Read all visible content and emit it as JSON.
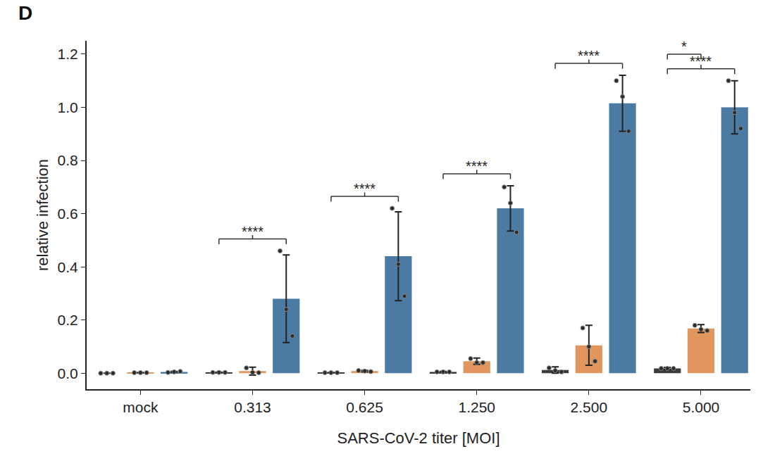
{
  "chart_data": {
    "type": "bar",
    "panel_label": "D",
    "x_label": "SARS-CoV-2 titer [MOI]",
    "y_label": "relative infection",
    "categories": [
      "mock",
      "0.313",
      "0.625",
      "1.250",
      "2.500",
      "5.000"
    ],
    "series": [
      {
        "color": "#3b3b3b",
        "values": [
          0.0,
          0.003,
          0.002,
          0.005,
          0.012,
          0.018
        ],
        "errors": [
          0.0,
          0.001,
          0.001,
          0.002,
          0.012,
          0.004
        ],
        "points": [
          [
            0.0,
            0.0,
            0.0
          ],
          [
            0.003,
            0.003,
            0.003
          ],
          [
            0.002,
            0.002,
            0.002
          ],
          [
            0.005,
            0.005,
            0.005
          ],
          [
            0.02,
            0.01,
            0.005
          ],
          [
            0.018,
            0.018,
            0.018
          ]
        ]
      },
      {
        "color": "#e0965c",
        "values": [
          0.002,
          0.008,
          0.008,
          0.045,
          0.105,
          0.168
        ],
        "errors": [
          0.001,
          0.015,
          0.003,
          0.012,
          0.075,
          0.015
        ],
        "points": [
          [
            0.002,
            0.002,
            0.002
          ],
          [
            0.02,
            0.003,
            0.002
          ],
          [
            0.01,
            0.008,
            0.006
          ],
          [
            0.055,
            0.04,
            0.04
          ],
          [
            0.17,
            0.1,
            0.045
          ],
          [
            0.18,
            0.165,
            0.16
          ]
        ]
      },
      {
        "color": "#4b7ba2",
        "values": [
          0.005,
          0.28,
          0.44,
          0.62,
          1.015,
          1.0
        ],
        "errors": [
          0.002,
          0.165,
          0.167,
          0.085,
          0.105,
          0.1
        ],
        "points": [
          [
            0.003,
            0.005,
            0.007
          ],
          [
            0.46,
            0.24,
            0.14
          ],
          [
            0.62,
            0.41,
            0.29
          ],
          [
            0.7,
            0.64,
            0.53
          ],
          [
            1.1,
            1.04,
            0.91
          ],
          [
            1.1,
            0.98,
            0.92
          ]
        ]
      }
    ],
    "significance": [
      {
        "category": "0.313",
        "series": [
          0,
          1,
          2
        ],
        "label": "****"
      },
      {
        "category": "0.625",
        "series": [
          0,
          1,
          2
        ],
        "label": "****"
      },
      {
        "category": "1.250",
        "series": [
          0,
          1,
          2
        ],
        "label": "****"
      },
      {
        "category": "2.500",
        "series": [
          0,
          1,
          2
        ],
        "label": "****"
      },
      {
        "category": "5.000",
        "series": [
          0,
          1,
          2
        ],
        "label": "****"
      },
      {
        "category": "5.000",
        "series": [
          0,
          1
        ],
        "label": "*"
      }
    ],
    "ylim": [
      -0.06,
      1.25
    ],
    "yticks": [
      {
        "value": 0,
        "label": "0.0"
      },
      0.2,
      0.4,
      0.6,
      0.8,
      {
        "value": 1,
        "label": "1.0"
      },
      1.2
    ],
    "grid": false
  }
}
